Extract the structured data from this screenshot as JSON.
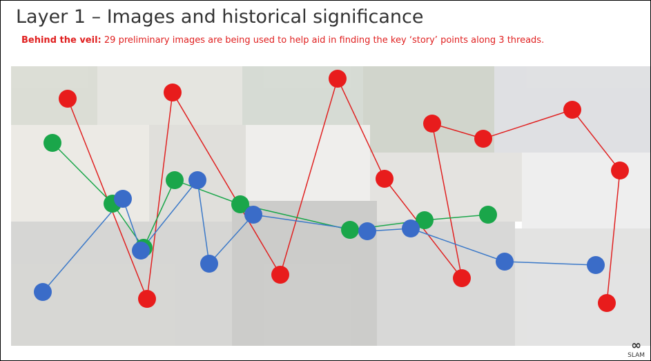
{
  "header": {
    "title": "Layer 1 – Images and historical significance",
    "lead": "Behind the veil:",
    "text": "29 preliminary images are being used to help aid in finding the key ‘story’ points along 3 threads."
  },
  "logo": "SLAM"
}
